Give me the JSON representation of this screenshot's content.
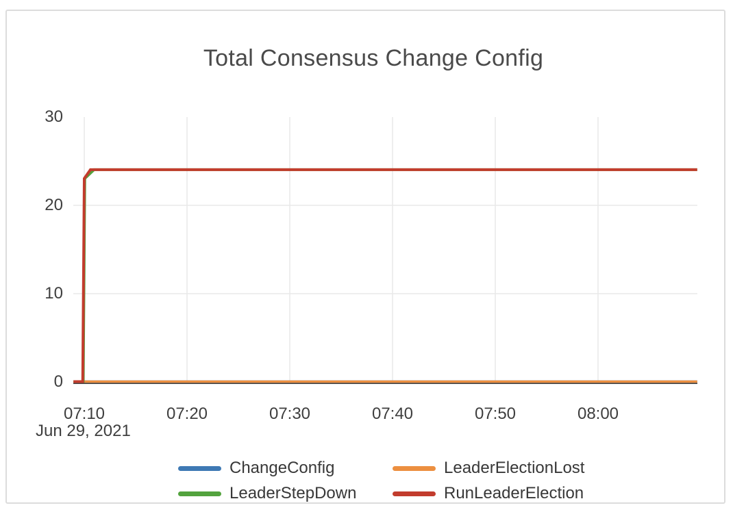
{
  "title": "Total Consensus Change Config",
  "chart_data": {
    "type": "line",
    "title": "Total Consensus Change Config",
    "x_axis": {
      "date_label": "Jun 29, 2021",
      "tick_labels": [
        "07:10",
        "07:20",
        "07:30",
        "07:40",
        "07:50",
        "08:00"
      ],
      "tick_minutes": [
        10,
        20,
        30,
        40,
        50,
        60
      ],
      "unit": "time of day HH:MM on Jun 29, 2021 (minutes counted after 07:00)",
      "range_minutes": [
        8.95,
        69.65
      ]
    },
    "y_axis": {
      "tick_labels": [
        "0",
        "10",
        "20",
        "30"
      ],
      "tick_values": [
        0,
        10,
        20,
        30
      ],
      "range": [
        0,
        30
      ]
    },
    "grid": {
      "vertical_at_x_ticks": true,
      "horizontal_at": [
        10,
        20
      ],
      "baseline_at": 0
    },
    "plateau_value": 24,
    "series": [
      {
        "name": "ChangeConfig",
        "color": "#3E79B4",
        "points_t_v": [
          [
            8.95,
            0
          ],
          [
            69.65,
            0
          ]
        ]
      },
      {
        "name": "LeaderElectionLost",
        "color": "#EC8F40",
        "points_t_v": [
          [
            8.95,
            0
          ],
          [
            69.65,
            0
          ]
        ]
      },
      {
        "name": "LeaderStepDown",
        "color": "#53A33E",
        "points_t_v": [
          [
            8.95,
            0
          ],
          [
            9.9,
            0
          ],
          [
            10.05,
            23
          ],
          [
            10.95,
            24
          ],
          [
            69.65,
            24
          ]
        ]
      },
      {
        "name": "RunLeaderElection",
        "color": "#C23C2D",
        "points_t_v": [
          [
            8.95,
            0
          ],
          [
            9.85,
            0
          ],
          [
            10.0,
            23
          ],
          [
            10.6,
            24
          ],
          [
            69.65,
            24
          ]
        ]
      }
    ],
    "legend_position": "bottom"
  },
  "legend": {
    "items": [
      {
        "label": "ChangeConfig",
        "color": "#3E79B4"
      },
      {
        "label": "LeaderElectionLost",
        "color": "#EC8F40"
      },
      {
        "label": "LeaderStepDown",
        "color": "#53A33E"
      },
      {
        "label": "RunLeaderElection",
        "color": "#C23C2D"
      }
    ]
  },
  "colors": {
    "grid_line": "#e9e9e9",
    "axis_baseline": "#474747",
    "axis_text": "#3e3e3e",
    "title_text": "#4a4a4a",
    "card_border": "#dcdcdc",
    "background": "#ffffff"
  }
}
